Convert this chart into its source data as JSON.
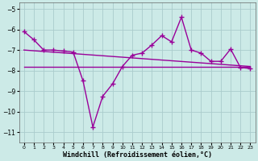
{
  "xlabel": "Windchill (Refroidissement éolien,°C)",
  "line1_x": [
    0,
    1,
    2,
    3,
    4,
    5,
    6,
    7,
    8,
    9,
    10,
    11,
    12,
    13,
    14,
    15,
    16,
    17,
    18,
    19,
    20,
    21,
    22,
    23
  ],
  "line1_y": [
    -6.1,
    -6.5,
    -7.0,
    -7.0,
    -7.05,
    -7.1,
    -8.5,
    -10.75,
    -9.25,
    -8.65,
    -7.8,
    -7.25,
    -7.15,
    -6.75,
    -6.3,
    -6.6,
    -5.4,
    -7.0,
    -7.15,
    -7.55,
    -7.55,
    -6.95,
    -7.85,
    -7.9
  ],
  "line2_x": [
    0,
    23
  ],
  "line2_y": [
    -7.8,
    -7.8
  ],
  "line3_x": [
    0,
    23
  ],
  "line3_y": [
    -7.0,
    -7.8
  ],
  "bg_color": "#cceae7",
  "grid_color": "#aacccc",
  "line_color": "#990099",
  "ylim": [
    -11.5,
    -4.7
  ],
  "xlim": [
    -0.5,
    23.5
  ],
  "yticks": [
    -11,
    -10,
    -9,
    -8,
    -7,
    -6,
    -5
  ],
  "xticks": [
    0,
    1,
    2,
    3,
    4,
    5,
    6,
    7,
    8,
    9,
    10,
    11,
    12,
    13,
    14,
    15,
    16,
    17,
    18,
    19,
    20,
    21,
    22,
    23
  ],
  "xlabel_fontsize": 6,
  "ytick_fontsize": 5.5,
  "xtick_fontsize": 4.5
}
